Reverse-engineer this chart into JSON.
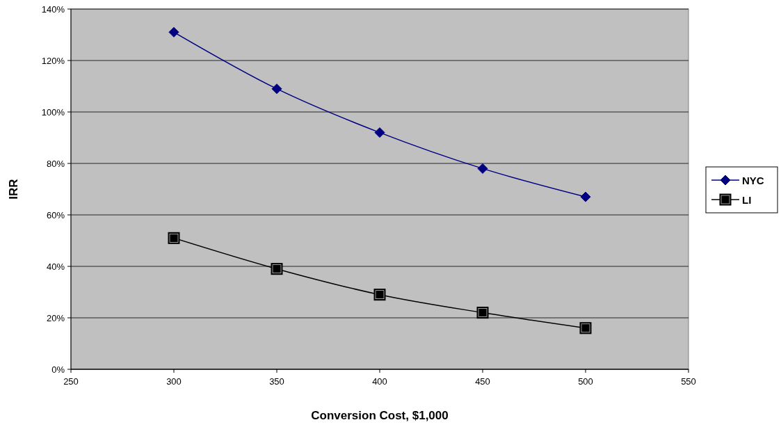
{
  "chart_data": {
    "type": "line",
    "xlabel": "Conversion Cost, $1,000",
    "ylabel": "IRR",
    "x": [
      300,
      350,
      400,
      450,
      500
    ],
    "series": [
      {
        "name": "NYC",
        "color": "#000080",
        "marker": "diamond",
        "values": [
          131,
          109,
          92,
          78,
          67
        ]
      },
      {
        "name": "LI",
        "color": "#000000",
        "marker": "square",
        "values": [
          51,
          39,
          29,
          22,
          16
        ]
      }
    ],
    "xlim": [
      250,
      550
    ],
    "xticks": [
      250,
      300,
      350,
      400,
      450,
      500,
      550
    ],
    "ylim": [
      0,
      140
    ],
    "yticks": [
      {
        "value": 0,
        "label": "0%"
      },
      {
        "value": 20,
        "label": "20%"
      },
      {
        "value": 40,
        "label": "40%"
      },
      {
        "value": 60,
        "label": "60%"
      },
      {
        "value": 80,
        "label": "80%"
      },
      {
        "value": 100,
        "label": "100%"
      },
      {
        "value": 120,
        "label": "120%"
      },
      {
        "value": 140,
        "label": "140%"
      }
    ],
    "grid": "y",
    "legend": "right",
    "line_style": "solid"
  }
}
